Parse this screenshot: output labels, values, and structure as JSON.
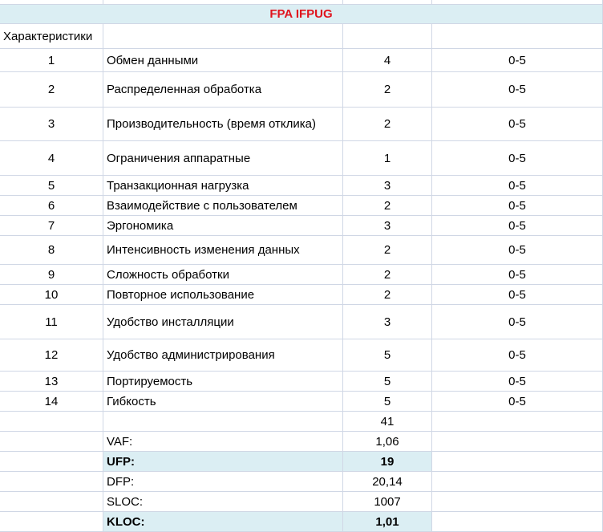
{
  "sheet_title": "FPA IFPUG",
  "characteristics_label": "Характеристики",
  "rows": [
    {
      "num": "1",
      "name": "Обмен данными",
      "value": "4",
      "range": "0-5"
    },
    {
      "num": "2",
      "name": "Распределенная обработка",
      "value": "2",
      "range": "0-5"
    },
    {
      "num": "3",
      "name": "Производительность (время отклика)",
      "value": "2",
      "range": "0-5"
    },
    {
      "num": "4",
      "name": "Ограничения аппаратные",
      "value": "1",
      "range": "0-5"
    },
    {
      "num": "5",
      "name": "Транзакционная нагрузка",
      "value": "3",
      "range": "0-5"
    },
    {
      "num": "6",
      "name": "Взаимодействие с пользователем",
      "value": "2",
      "range": "0-5"
    },
    {
      "num": "7",
      "name": "Эргономика",
      "value": "3",
      "range": "0-5"
    },
    {
      "num": "8",
      "name": "Интенсивность изменения данных",
      "value": "2",
      "range": "0-5"
    },
    {
      "num": "9",
      "name": "Сложность обработки",
      "value": "2",
      "range": "0-5"
    },
    {
      "num": "10",
      "name": "Повторное использование",
      "value": "2",
      "range": "0-5"
    },
    {
      "num": "11",
      "name": "Удобство инсталляции",
      "value": "3",
      "range": "0-5"
    },
    {
      "num": "12",
      "name": "Удобство администрирования",
      "value": "5",
      "range": "0-5"
    },
    {
      "num": "13",
      "name": "Портируемость",
      "value": "5",
      "range": "0-5"
    },
    {
      "num": "14",
      "name": "Гибкость",
      "value": "5",
      "range": "0-5"
    }
  ],
  "total": "41",
  "summary": [
    {
      "label": "VAF:",
      "value": "1,06",
      "highlight": false,
      "bold": false
    },
    {
      "label": "UFP:",
      "value": "19",
      "highlight": true,
      "bold": true
    },
    {
      "label": "DFP:",
      "value": "20,14",
      "highlight": false,
      "bold": false
    },
    {
      "label": "SLOC:",
      "value": "1007",
      "highlight": false,
      "bold": false
    },
    {
      "label": "KLOC:",
      "value": "1,01",
      "highlight": true,
      "bold": true
    }
  ],
  "colors": {
    "title": "#e0141e",
    "highlight": "#dbeef3",
    "grid": "#d0d7e5"
  }
}
